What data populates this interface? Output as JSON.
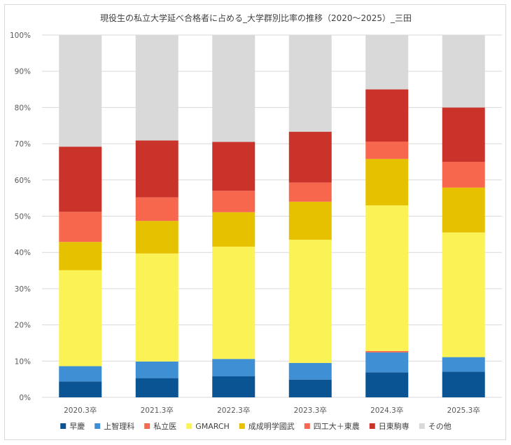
{
  "chart_data": {
    "type": "bar",
    "stacked": true,
    "title": "現役生の私立大学延べ合格者に占める_大学群別比率の推移（2020～2025）_三田",
    "categories": [
      "2020.3卒",
      "2021.3卒",
      "2022.3卒",
      "2023.3卒",
      "2024.3卒",
      "2025.3卒"
    ],
    "ylim": [
      0,
      100
    ],
    "yticks": [
      0,
      10,
      20,
      30,
      40,
      50,
      60,
      70,
      80,
      90,
      100
    ],
    "ytick_suffix": "%",
    "grid": true,
    "legend_position": "bottom",
    "series": [
      {
        "name": "早慶",
        "color": "#0b5494",
        "values": [
          4.4,
          5.3,
          5.8,
          4.9,
          6.9,
          7.1
        ]
      },
      {
        "name": "上智理科",
        "color": "#3e8fd4",
        "values": [
          4.2,
          4.6,
          4.8,
          4.6,
          5.5,
          4.0
        ]
      },
      {
        "name": "私立医",
        "color": "#f26a4f",
        "values": [
          0.0,
          0.0,
          0.0,
          0.0,
          0.4,
          0.0
        ]
      },
      {
        "name": "GMARCH",
        "color": "#fbf255",
        "values": [
          26.5,
          29.8,
          31.0,
          34.0,
          40.2,
          34.4
        ]
      },
      {
        "name": "成成明学國武",
        "color": "#e6c100",
        "values": [
          7.8,
          9.0,
          9.5,
          10.5,
          12.8,
          12.4
        ]
      },
      {
        "name": "四工大＋東農",
        "color": "#f7674e",
        "values": [
          8.3,
          6.5,
          5.9,
          5.3,
          4.8,
          7.1
        ]
      },
      {
        "name": "日東駒専",
        "color": "#c9332a",
        "values": [
          18.0,
          15.7,
          13.5,
          14.0,
          14.4,
          15.0
        ]
      },
      {
        "name": "その他",
        "color": "#d9d9d9",
        "values": [
          30.8,
          29.1,
          29.5,
          26.7,
          15.0,
          20.0
        ]
      }
    ]
  }
}
